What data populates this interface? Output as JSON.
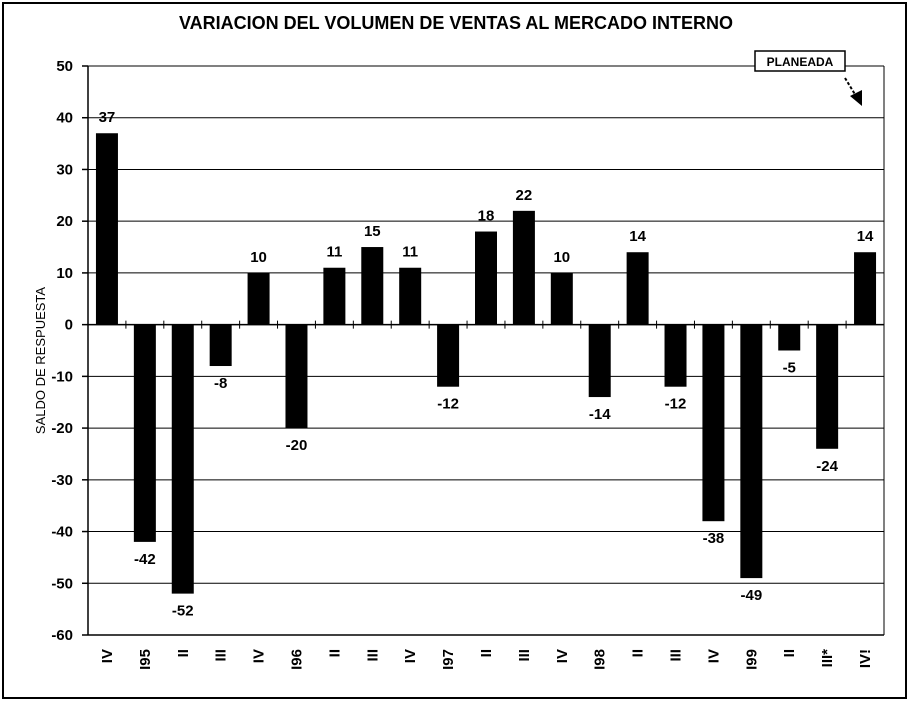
{
  "chart_data": {
    "type": "bar",
    "title": "VARIACION DEL VOLUMEN DE VENTAS AL MERCADO INTERNO",
    "ylabel": "SALDO DE RESPUESTA",
    "xlabel": "",
    "ylim": [
      -60,
      50
    ],
    "yticks": [
      50,
      40,
      30,
      20,
      10,
      0,
      -10,
      -20,
      -30,
      -40,
      -50,
      -60
    ],
    "grid": true,
    "categories": [
      "IV",
      "I95",
      "II",
      "III",
      "IV",
      "I96",
      "II",
      "III",
      "IV",
      "I97",
      "II",
      "III",
      "IV",
      "I98",
      "II",
      "III",
      "IV",
      "I99",
      "II",
      "III*",
      "IV!"
    ],
    "values": [
      37,
      -42,
      -52,
      -8,
      10,
      -20,
      11,
      15,
      11,
      -12,
      18,
      22,
      10,
      -14,
      14,
      -12,
      -38,
      -49,
      -5,
      -24,
      14
    ],
    "bar_color": "#000000",
    "annotation": "PLANEADA"
  }
}
